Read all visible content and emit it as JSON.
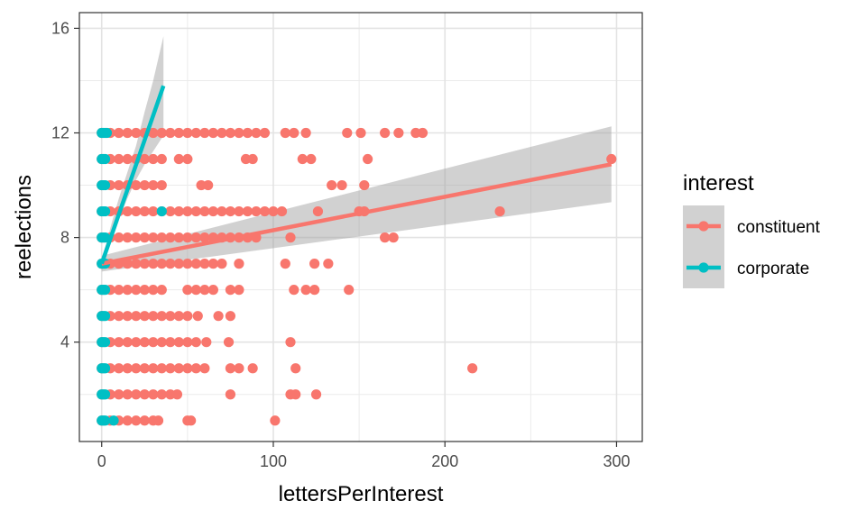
{
  "chart_data": {
    "type": "scatter",
    "xlabel": "lettersPerInterest",
    "ylabel": "reelections",
    "xlim": [
      -13,
      315
    ],
    "ylim": [
      0.2,
      16.6
    ],
    "x_ticks": [
      0,
      100,
      200,
      300
    ],
    "y_ticks": [
      4,
      8,
      12,
      16
    ],
    "x_tick_labels": [
      "0",
      "100",
      "200",
      "300"
    ],
    "y_tick_labels": [
      "4",
      "8",
      "12",
      "16"
    ],
    "grid": true,
    "legend": {
      "title": "interest",
      "position": "right"
    },
    "series": [
      {
        "name": "constituent",
        "color": "#F8766D",
        "points": [
          [
            0,
            1
          ],
          [
            5,
            1
          ],
          [
            10,
            1
          ],
          [
            15,
            1
          ],
          [
            20,
            1
          ],
          [
            25,
            1
          ],
          [
            30,
            1
          ],
          [
            33,
            1
          ],
          [
            50,
            1
          ],
          [
            52,
            1
          ],
          [
            101,
            1
          ],
          [
            0,
            2
          ],
          [
            5,
            2
          ],
          [
            10,
            2
          ],
          [
            15,
            2
          ],
          [
            20,
            2
          ],
          [
            25,
            2
          ],
          [
            30,
            2
          ],
          [
            35,
            2
          ],
          [
            40,
            2
          ],
          [
            44,
            2
          ],
          [
            75,
            2
          ],
          [
            110,
            2
          ],
          [
            113,
            2
          ],
          [
            125,
            2
          ],
          [
            0,
            3
          ],
          [
            5,
            3
          ],
          [
            10,
            3
          ],
          [
            15,
            3
          ],
          [
            20,
            3
          ],
          [
            25,
            3
          ],
          [
            30,
            3
          ],
          [
            35,
            3
          ],
          [
            40,
            3
          ],
          [
            45,
            3
          ],
          [
            50,
            3
          ],
          [
            55,
            3
          ],
          [
            60,
            3
          ],
          [
            75,
            3
          ],
          [
            80,
            3
          ],
          [
            88,
            3
          ],
          [
            113,
            3
          ],
          [
            216,
            3
          ],
          [
            0,
            4
          ],
          [
            5,
            4
          ],
          [
            10,
            4
          ],
          [
            15,
            4
          ],
          [
            20,
            4
          ],
          [
            25,
            4
          ],
          [
            30,
            4
          ],
          [
            35,
            4
          ],
          [
            40,
            4
          ],
          [
            45,
            4
          ],
          [
            50,
            4
          ],
          [
            55,
            4
          ],
          [
            61,
            4
          ],
          [
            74,
            4
          ],
          [
            110,
            4
          ],
          [
            0,
            5
          ],
          [
            5,
            5
          ],
          [
            10,
            5
          ],
          [
            15,
            5
          ],
          [
            20,
            5
          ],
          [
            25,
            5
          ],
          [
            30,
            5
          ],
          [
            35,
            5
          ],
          [
            40,
            5
          ],
          [
            45,
            5
          ],
          [
            50,
            5
          ],
          [
            56,
            5
          ],
          [
            68,
            5
          ],
          [
            75,
            5
          ],
          [
            0,
            6
          ],
          [
            5,
            6
          ],
          [
            10,
            6
          ],
          [
            15,
            6
          ],
          [
            20,
            6
          ],
          [
            25,
            6
          ],
          [
            30,
            6
          ],
          [
            35,
            6
          ],
          [
            50,
            6
          ],
          [
            55,
            6
          ],
          [
            60,
            6
          ],
          [
            65,
            6
          ],
          [
            75,
            6
          ],
          [
            80,
            6
          ],
          [
            112,
            6
          ],
          [
            119,
            6
          ],
          [
            124,
            6
          ],
          [
            144,
            6
          ],
          [
            0,
            7
          ],
          [
            5,
            7
          ],
          [
            10,
            7
          ],
          [
            15,
            7
          ],
          [
            20,
            7
          ],
          [
            25,
            7
          ],
          [
            30,
            7
          ],
          [
            35,
            7
          ],
          [
            40,
            7
          ],
          [
            45,
            7
          ],
          [
            50,
            7
          ],
          [
            55,
            7
          ],
          [
            60,
            7
          ],
          [
            65,
            7
          ],
          [
            70,
            7
          ],
          [
            80,
            7
          ],
          [
            107,
            7
          ],
          [
            124,
            7
          ],
          [
            132,
            7
          ],
          [
            0,
            8
          ],
          [
            5,
            8
          ],
          [
            10,
            8
          ],
          [
            15,
            8
          ],
          [
            20,
            8
          ],
          [
            25,
            8
          ],
          [
            30,
            8
          ],
          [
            35,
            8
          ],
          [
            40,
            8
          ],
          [
            45,
            8
          ],
          [
            50,
            8
          ],
          [
            55,
            8
          ],
          [
            60,
            8
          ],
          [
            65,
            8
          ],
          [
            70,
            8
          ],
          [
            75,
            8
          ],
          [
            80,
            8
          ],
          [
            85,
            8
          ],
          [
            90,
            8
          ],
          [
            110,
            8
          ],
          [
            165,
            8
          ],
          [
            170,
            8
          ],
          [
            0,
            9
          ],
          [
            5,
            9
          ],
          [
            10,
            9
          ],
          [
            15,
            9
          ],
          [
            20,
            9
          ],
          [
            25,
            9
          ],
          [
            30,
            9
          ],
          [
            35,
            9
          ],
          [
            40,
            9
          ],
          [
            45,
            9
          ],
          [
            50,
            9
          ],
          [
            55,
            9
          ],
          [
            60,
            9
          ],
          [
            65,
            9
          ],
          [
            70,
            9
          ],
          [
            75,
            9
          ],
          [
            80,
            9
          ],
          [
            85,
            9
          ],
          [
            90,
            9
          ],
          [
            95,
            9
          ],
          [
            100,
            9
          ],
          [
            105,
            9
          ],
          [
            126,
            9
          ],
          [
            150,
            9
          ],
          [
            153,
            9
          ],
          [
            232,
            9
          ],
          [
            0,
            10
          ],
          [
            5,
            10
          ],
          [
            10,
            10
          ],
          [
            15,
            10
          ],
          [
            20,
            10
          ],
          [
            25,
            10
          ],
          [
            30,
            10
          ],
          [
            35,
            10
          ],
          [
            58,
            10
          ],
          [
            62,
            10
          ],
          [
            134,
            10
          ],
          [
            140,
            10
          ],
          [
            153,
            10
          ],
          [
            0,
            11
          ],
          [
            5,
            11
          ],
          [
            10,
            11
          ],
          [
            15,
            11
          ],
          [
            20,
            11
          ],
          [
            25,
            11
          ],
          [
            30,
            11
          ],
          [
            35,
            11
          ],
          [
            45,
            11
          ],
          [
            50,
            11
          ],
          [
            84,
            11
          ],
          [
            88,
            11
          ],
          [
            117,
            11
          ],
          [
            122,
            11
          ],
          [
            155,
            11
          ],
          [
            297,
            11
          ],
          [
            0,
            12
          ],
          [
            5,
            12
          ],
          [
            10,
            12
          ],
          [
            15,
            12
          ],
          [
            20,
            12
          ],
          [
            25,
            12
          ],
          [
            30,
            12
          ],
          [
            35,
            12
          ],
          [
            40,
            12
          ],
          [
            45,
            12
          ],
          [
            50,
            12
          ],
          [
            55,
            12
          ],
          [
            60,
            12
          ],
          [
            65,
            12
          ],
          [
            70,
            12
          ],
          [
            75,
            12
          ],
          [
            80,
            12
          ],
          [
            85,
            12
          ],
          [
            90,
            12
          ],
          [
            95,
            12
          ],
          [
            107,
            12
          ],
          [
            112,
            12
          ],
          [
            119,
            12
          ],
          [
            143,
            12
          ],
          [
            151,
            12
          ],
          [
            165,
            12
          ],
          [
            173,
            12
          ],
          [
            183,
            12
          ],
          [
            187,
            12
          ]
        ],
        "trend": {
          "x": [
            0,
            297
          ],
          "y": [
            7.0,
            10.8
          ]
        },
        "ribbon": {
          "x": [
            0,
            297
          ],
          "lower": [
            6.7,
            9.35
          ],
          "upper": [
            7.3,
            12.25
          ]
        }
      },
      {
        "name": "corporate",
        "color": "#00BFC4",
        "points": [
          [
            0,
            1
          ],
          [
            1,
            1
          ],
          [
            2,
            1
          ],
          [
            7,
            1
          ],
          [
            0,
            2
          ],
          [
            1,
            2
          ],
          [
            2,
            2
          ],
          [
            0,
            3
          ],
          [
            1,
            3
          ],
          [
            2,
            3
          ],
          [
            0,
            4
          ],
          [
            1,
            4
          ],
          [
            2,
            4
          ],
          [
            0,
            5
          ],
          [
            1,
            5
          ],
          [
            2,
            5
          ],
          [
            0,
            6
          ],
          [
            1,
            6
          ],
          [
            2,
            6
          ],
          [
            0,
            7
          ],
          [
            1,
            7
          ],
          [
            2,
            7
          ],
          [
            0,
            8
          ],
          [
            1,
            8
          ],
          [
            2,
            8
          ],
          [
            0,
            9
          ],
          [
            1,
            9
          ],
          [
            2,
            9
          ],
          [
            35,
            9
          ],
          [
            0,
            10
          ],
          [
            1,
            10
          ],
          [
            2,
            10
          ],
          [
            0,
            11
          ],
          [
            1,
            11
          ],
          [
            2,
            11
          ],
          [
            0,
            12
          ],
          [
            1,
            12
          ],
          [
            2,
            12
          ],
          [
            3,
            12
          ]
        ],
        "trend": {
          "x": [
            0,
            36
          ],
          "y": [
            7.0,
            13.8
          ]
        },
        "ribbon": {
          "x": [
            0,
            3,
            6,
            10,
            15,
            20,
            25,
            30,
            36
          ],
          "lower": [
            6.8,
            7.45,
            8.0,
            8.7,
            9.5,
            10.2,
            10.8,
            11.3,
            11.9
          ],
          "upper": [
            7.2,
            7.85,
            8.6,
            9.5,
            10.5,
            11.5,
            12.8,
            14.0,
            15.7
          ]
        }
      }
    ]
  }
}
